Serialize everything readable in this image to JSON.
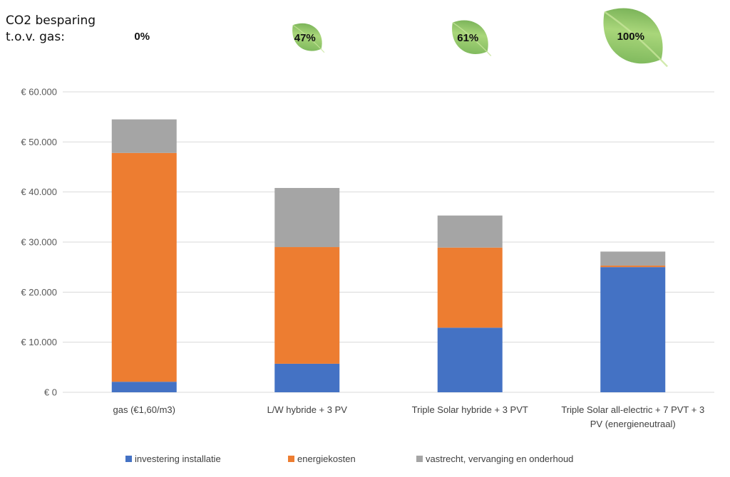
{
  "co2": {
    "label_line1": "CO2 besparing",
    "label_line2": "t.o.v. gas:",
    "savings": [
      {
        "value": "0%",
        "leaf": false
      },
      {
        "value": "47%",
        "leaf": true,
        "leaf_size": "small"
      },
      {
        "value": "61%",
        "leaf": true,
        "leaf_size": "medium"
      },
      {
        "value": "100%",
        "leaf": true,
        "leaf_size": "large"
      }
    ]
  },
  "chart_data": {
    "type": "bar",
    "stacked": true,
    "title": "",
    "xlabel": "",
    "ylabel": "",
    "categories": [
      [
        "gas (€1,60/m3)"
      ],
      [
        "L/W hybride + 3 PV"
      ],
      [
        "Triple Solar hybride + 3 PVT"
      ],
      [
        "Triple Solar all-electric + 7 PVT + 3",
        "PV (energieneutraal)"
      ]
    ],
    "series": [
      {
        "name": "investering installatie",
        "color": "#4472C4",
        "values": [
          2100,
          5700,
          12900,
          25000
        ]
      },
      {
        "name": "energiekosten",
        "color": "#ED7D31",
        "values": [
          45700,
          23300,
          16000,
          300
        ]
      },
      {
        "name": "vastrecht, vervanging en onderhoud",
        "color": "#A5A5A5",
        "values": [
          6700,
          11800,
          6400,
          2800
        ]
      }
    ],
    "ylim": [
      0,
      60000
    ],
    "yticks": [
      0,
      10000,
      20000,
      30000,
      40000,
      50000,
      60000
    ],
    "ytick_labels": [
      "€ 0",
      "€ 10.000",
      "€ 20.000",
      "€ 30.000",
      "€ 40.000",
      "€ 50.000",
      "€ 60.000"
    ],
    "grid": true,
    "legend_position": "bottom",
    "gridline_color": "#D9D9D9",
    "leaf_color": "#7DBE5A"
  }
}
